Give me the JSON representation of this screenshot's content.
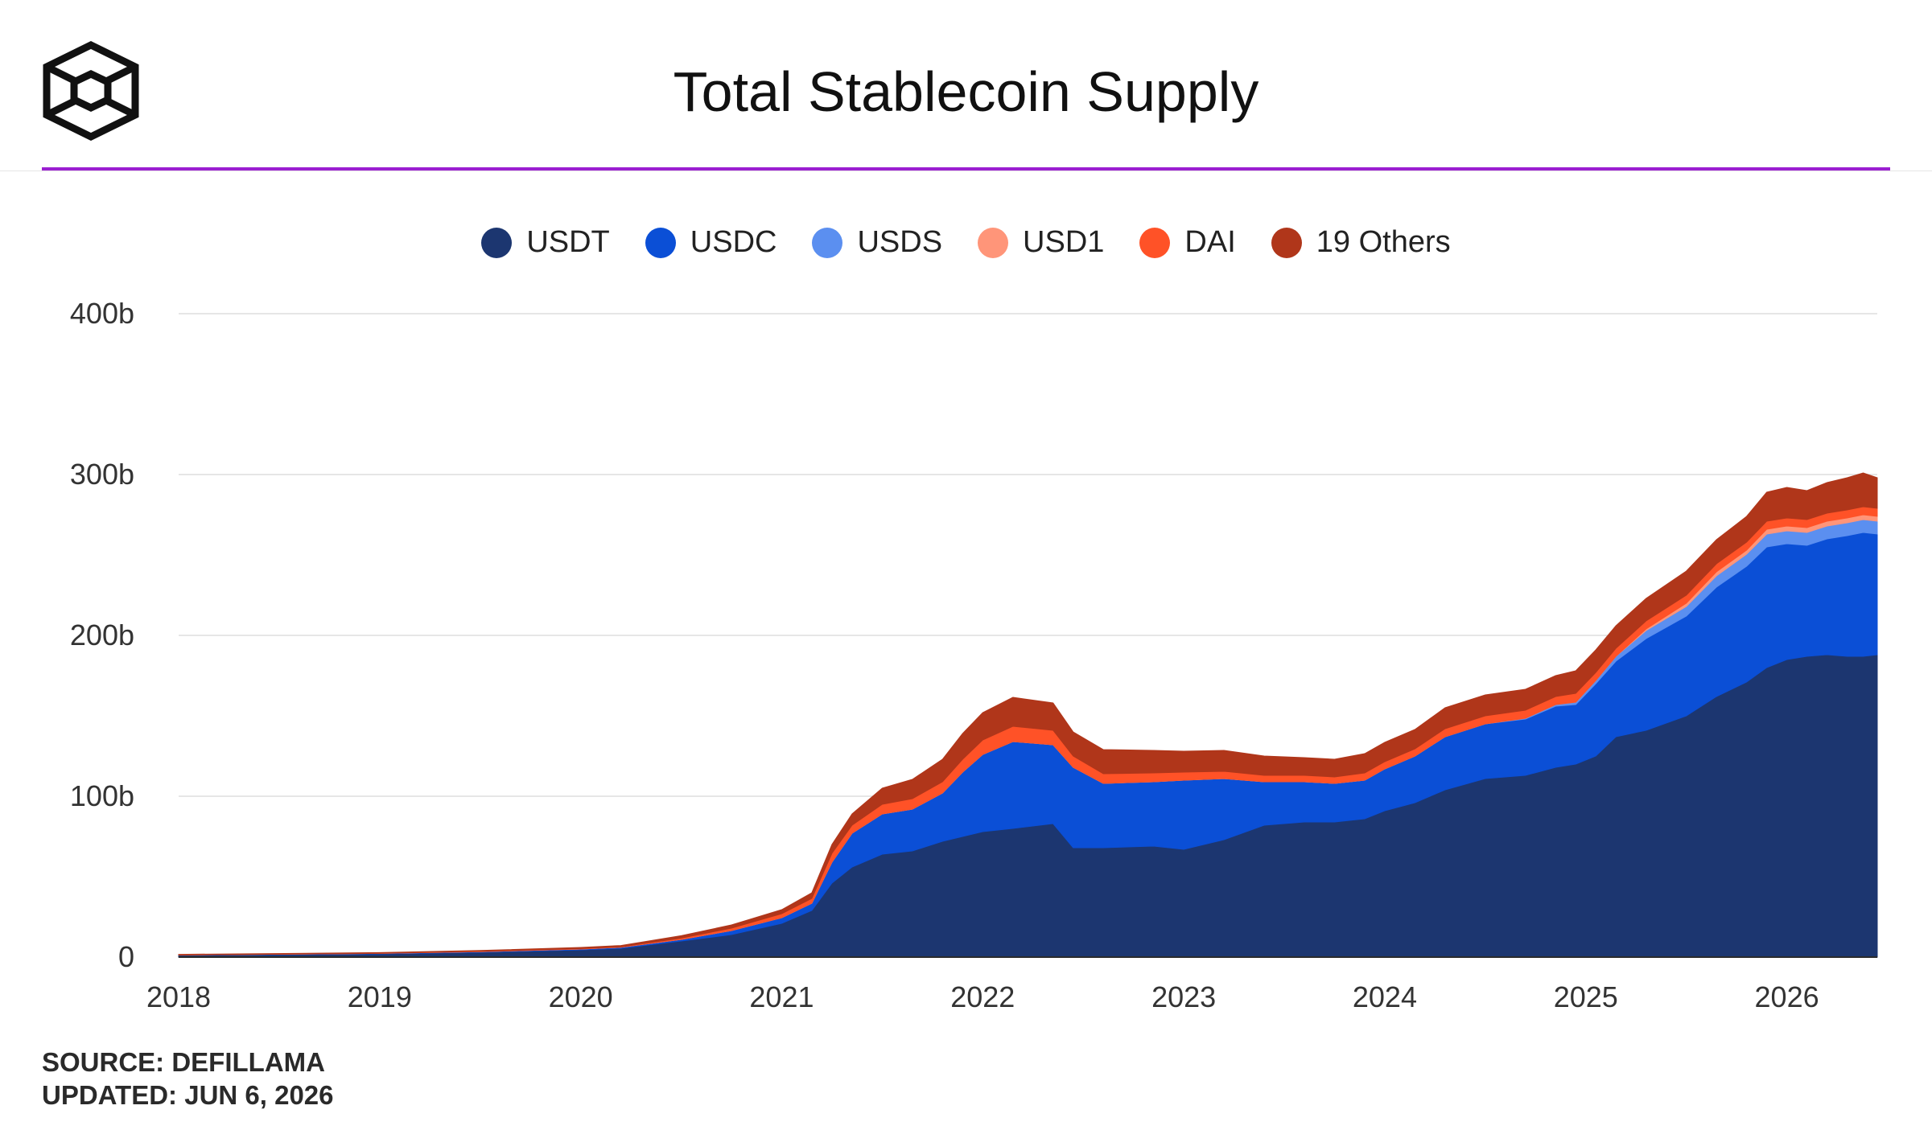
{
  "header": {
    "title": "Total Stablecoin Supply",
    "accent_color": "#9b1fd1",
    "logo_icon": "cube-logo-icon"
  },
  "legend": [
    {
      "label": "USDT",
      "color": "#1c3670"
    },
    {
      "label": "USDC",
      "color": "#0b4fd6"
    },
    {
      "label": "USDS",
      "color": "#5b8ff0"
    },
    {
      "label": "USD1",
      "color": "#ff9579"
    },
    {
      "label": "DAI",
      "color": "#ff5227"
    },
    {
      "label": "19 Others",
      "color": "#b0361a"
    }
  ],
  "footer": {
    "source": "SOURCE: DEFILLAMA",
    "updated": "UPDATED: JUN 6, 2026"
  },
  "chart_data": {
    "type": "area",
    "stacked": true,
    "title": "Total Stablecoin Supply",
    "xlabel": "",
    "ylabel": "",
    "legend_position": "top-center",
    "grid": true,
    "xlim": [
      2018.0,
      2026.45
    ],
    "ylim": [
      0,
      400
    ],
    "y_unit": "b",
    "x_ticks": [
      "2018",
      "2019",
      "2020",
      "2021",
      "2022",
      "2023",
      "2024",
      "2025",
      "2026"
    ],
    "y_ticks": [
      "0",
      "100b",
      "200b",
      "300b",
      "400b"
    ],
    "x": [
      2018.0,
      2019.0,
      2019.5,
      2020.0,
      2020.2,
      2020.5,
      2020.75,
      2021.0,
      2021.15,
      2021.25,
      2021.35,
      2021.5,
      2021.65,
      2021.8,
      2021.9,
      2022.0,
      2022.15,
      2022.35,
      2022.45,
      2022.6,
      2022.85,
      2023.0,
      2023.2,
      2023.4,
      2023.6,
      2023.75,
      2023.9,
      2024.0,
      2024.15,
      2024.3,
      2024.5,
      2024.7,
      2024.85,
      2024.95,
      2025.05,
      2025.15,
      2025.3,
      2025.5,
      2025.65,
      2025.8,
      2025.9,
      2026.0,
      2026.1,
      2026.2,
      2026.3,
      2026.38,
      2026.45
    ],
    "series": [
      {
        "name": "USDT",
        "values": [
          1.2,
          2.0,
          3.0,
          4.5,
          5.5,
          10,
          14,
          21,
          29,
          46,
          56,
          64,
          66,
          72,
          75,
          78,
          80,
          83,
          68,
          68,
          69,
          67,
          73,
          82,
          84,
          84,
          86,
          91,
          96,
          104,
          111,
          113,
          118,
          120,
          125,
          137,
          141,
          150,
          162,
          171,
          180,
          185,
          187,
          188,
          187,
          187,
          188
        ]
      },
      {
        "name": "USDC",
        "values": [
          0.1,
          0.3,
          0.4,
          0.5,
          0.6,
          1.0,
          2.5,
          3.5,
          4.5,
          13,
          21,
          25,
          26,
          30,
          40,
          48,
          54,
          49,
          50,
          40,
          40,
          43,
          38,
          27,
          25,
          24,
          24,
          26,
          29,
          33,
          34,
          35,
          38,
          37,
          45,
          47,
          57,
          62,
          68,
          72,
          75,
          72,
          69,
          72,
          75,
          77,
          75
        ]
      },
      {
        "name": "USDS",
        "values": [
          0,
          0,
          0,
          0,
          0,
          0,
          0,
          0,
          0,
          0,
          0,
          0,
          0,
          0,
          0,
          0,
          0,
          0,
          0,
          0,
          0,
          0,
          0,
          0,
          0,
          0,
          0,
          0,
          0,
          0,
          0,
          0.5,
          1,
          1.5,
          2,
          3,
          5,
          6,
          7,
          7.5,
          8,
          8,
          8,
          8,
          8,
          8,
          8
        ]
      },
      {
        "name": "USD1",
        "values": [
          0,
          0,
          0,
          0,
          0,
          0,
          0,
          0,
          0,
          0,
          0,
          0,
          0,
          0,
          0,
          0,
          0,
          0,
          0,
          0,
          0,
          0,
          0,
          0,
          0,
          0,
          0,
          0,
          0,
          0,
          0,
          0,
          0,
          0,
          0,
          0,
          1,
          2,
          2.5,
          2.5,
          3,
          3,
          3,
          3,
          3,
          3,
          3
        ]
      },
      {
        "name": "DAI",
        "values": [
          0.1,
          0.1,
          0.2,
          0.3,
          0.3,
          0.8,
          1.5,
          2.5,
          3.0,
          5.5,
          5.0,
          6.0,
          6.5,
          7.0,
          8.0,
          9.0,
          9.5,
          9.0,
          7.0,
          6.0,
          5.5,
          5.0,
          4.5,
          4.0,
          4.0,
          4.0,
          4.5,
          4.5,
          4.5,
          5.0,
          5.0,
          5.0,
          5.0,
          5.5,
          5.0,
          5.0,
          5.0,
          5.0,
          5.0,
          5.0,
          5.0,
          5.0,
          5.0,
          5.0,
          5.0,
          5.0,
          5.0
        ]
      },
      {
        "name": "19 Others",
        "values": [
          0.3,
          0.4,
          0.5,
          0.7,
          0.8,
          1.5,
          2.0,
          2.5,
          3.5,
          5.5,
          7.0,
          10,
          12,
          14,
          16,
          17,
          18,
          17,
          15,
          15,
          14,
          13,
          13,
          12,
          11,
          11,
          12,
          12,
          12,
          13,
          13,
          13,
          13,
          14,
          14,
          14,
          14,
          15,
          15,
          16,
          18,
          19,
          18,
          19,
          20,
          21,
          19
        ]
      }
    ]
  }
}
